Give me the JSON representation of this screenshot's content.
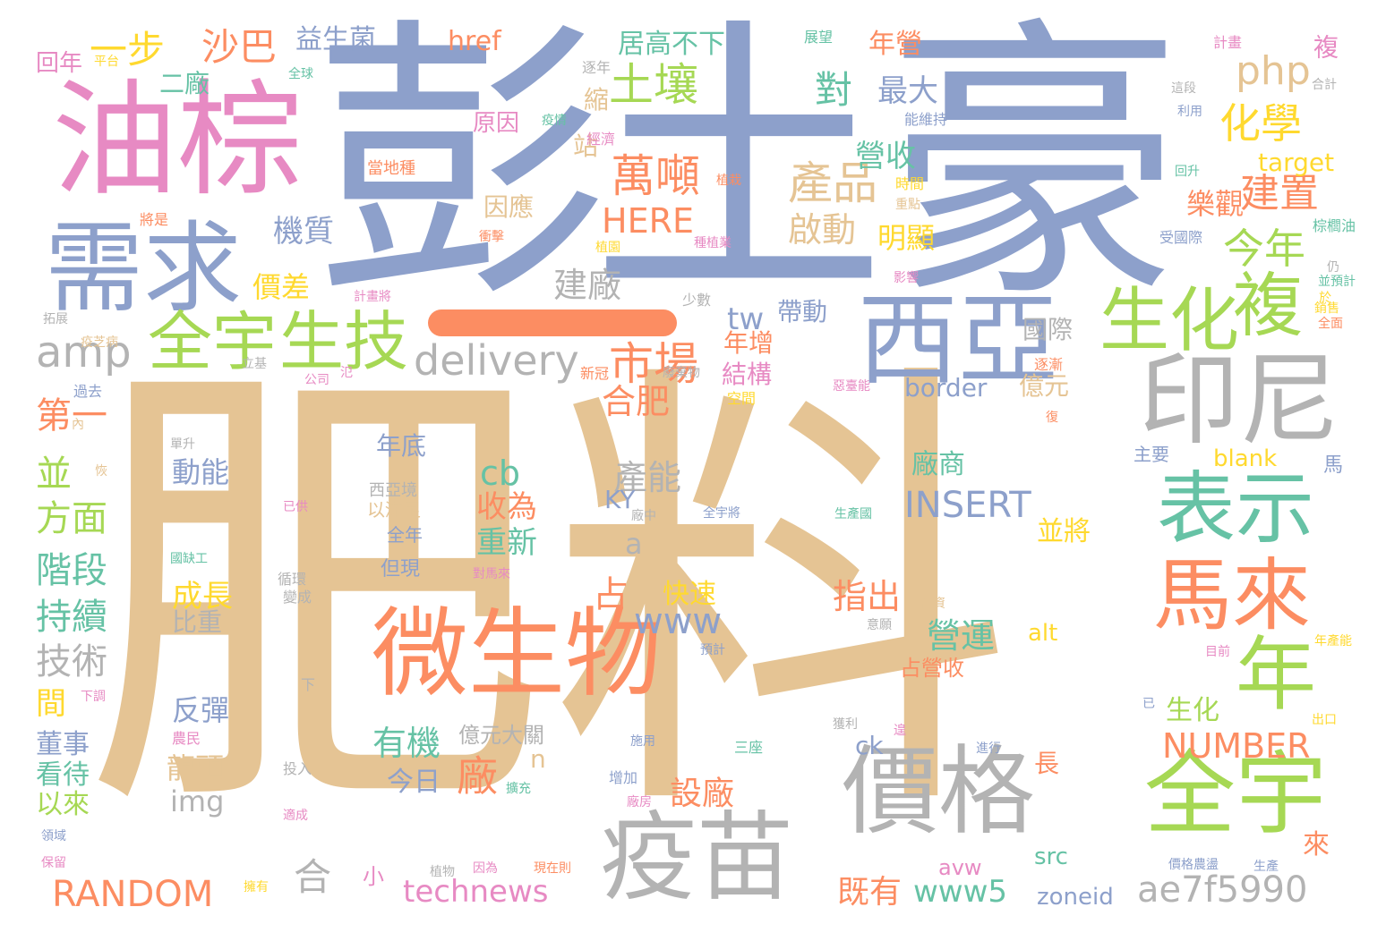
{
  "palette": {
    "blue": "#8da0cb",
    "tan": "#e5c494",
    "pink": "#e78ac3",
    "orange": "#fc8d62",
    "green": "#66c2a5",
    "lime": "#a6d854",
    "yellow": "#ffd92f",
    "gray": "#b3b3b3"
  },
  "dash_color": "#fc8d62",
  "words": [
    {
      "text": "肥料",
      "color": "tan"
    },
    {
      "text": "彭",
      "color": "blue"
    },
    {
      "text": "土豪",
      "color": "blue"
    },
    {
      "text": "油棕",
      "color": "pink"
    },
    {
      "text": "需求",
      "color": "blue"
    },
    {
      "text": "西亞",
      "color": "blue"
    },
    {
      "text": "印尼",
      "color": "gray"
    },
    {
      "text": "微生物",
      "color": "orange"
    },
    {
      "text": "疫苗",
      "color": "gray"
    },
    {
      "text": "價格",
      "color": "gray"
    },
    {
      "text": "全宇",
      "color": "lime"
    },
    {
      "text": "表示",
      "color": "green"
    },
    {
      "text": "馬來",
      "color": "orange"
    },
    {
      "text": "年",
      "color": "lime"
    },
    {
      "text": "生化",
      "color": "lime"
    },
    {
      "text": "複",
      "color": "lime"
    },
    {
      "text": "全宇",
      "color": "lime"
    },
    {
      "text": "生技",
      "color": "lime"
    },
    {
      "text": "amp",
      "color": "gray"
    },
    {
      "text": "delivery",
      "color": "gray"
    },
    {
      "text": "市場",
      "color": "orange"
    },
    {
      "text": "產品",
      "color": "tan"
    },
    {
      "text": "萬噸",
      "color": "orange"
    },
    {
      "text": "土壤",
      "color": "lime"
    },
    {
      "text": "化學",
      "color": "yellow"
    },
    {
      "text": "今年",
      "color": "lime"
    },
    {
      "text": "建置",
      "color": "orange"
    },
    {
      "text": "php",
      "color": "tan"
    },
    {
      "text": "沙巴",
      "color": "orange"
    },
    {
      "text": "一步",
      "color": "yellow"
    },
    {
      "text": "對",
      "color": "green"
    },
    {
      "text": "最大",
      "color": "blue"
    },
    {
      "text": "啟動",
      "color": "tan"
    },
    {
      "text": "機質",
      "color": "blue"
    },
    {
      "text": "價差",
      "color": "yellow"
    },
    {
      "text": "建廠",
      "color": "gray"
    },
    {
      "text": "HERE",
      "color": "orange"
    },
    {
      "text": "營收",
      "color": "green"
    },
    {
      "text": "明顯",
      "color": "yellow"
    },
    {
      "text": "樂觀",
      "color": "orange"
    },
    {
      "text": "target",
      "color": "yellow"
    },
    {
      "text": "居高不下",
      "color": "green"
    },
    {
      "text": "益生菌",
      "color": "blue"
    },
    {
      "text": "href",
      "color": "orange"
    },
    {
      "text": "年營",
      "color": "orange"
    },
    {
      "text": "回年",
      "color": "pink"
    },
    {
      "text": "二廠",
      "color": "green"
    },
    {
      "text": "因應",
      "color": "tan"
    },
    {
      "text": "站",
      "color": "tan"
    },
    {
      "text": "縮",
      "color": "tan"
    },
    {
      "text": "原因",
      "color": "pink"
    },
    {
      "text": "帶動",
      "color": "blue"
    },
    {
      "text": "tw",
      "color": "blue"
    },
    {
      "text": "年增",
      "color": "orange"
    },
    {
      "text": "結構",
      "color": "pink"
    },
    {
      "text": "國際",
      "color": "gray"
    },
    {
      "text": "border",
      "color": "blue"
    },
    {
      "text": "億元",
      "color": "tan"
    },
    {
      "text": "合肥",
      "color": "orange"
    },
    {
      "text": "產能",
      "color": "gray"
    },
    {
      "text": "cb",
      "color": "green"
    },
    {
      "text": "收為",
      "color": "orange"
    },
    {
      "text": "重新",
      "color": "green"
    },
    {
      "text": "廠商",
      "color": "green"
    },
    {
      "text": "INSERT",
      "color": "blue"
    },
    {
      "text": "並將",
      "color": "yellow"
    },
    {
      "text": "第一",
      "color": "orange"
    },
    {
      "text": "並",
      "color": "lime"
    },
    {
      "text": "方面",
      "color": "lime"
    },
    {
      "text": "階段",
      "color": "green"
    },
    {
      "text": "持續",
      "color": "green"
    },
    {
      "text": "技術",
      "color": "gray"
    },
    {
      "text": "間",
      "color": "yellow"
    },
    {
      "text": "董事",
      "color": "blue"
    },
    {
      "text": "看待",
      "color": "green"
    },
    {
      "text": "以來",
      "color": "lime"
    },
    {
      "text": "動能",
      "color": "blue"
    },
    {
      "text": "年底",
      "color": "blue"
    },
    {
      "text": "成長",
      "color": "yellow"
    },
    {
      "text": "比重",
      "color": "gray"
    },
    {
      "text": "反彈",
      "color": "blue"
    },
    {
      "text": "龍頭",
      "color": "tan"
    },
    {
      "text": "img",
      "color": "gray"
    },
    {
      "text": "KY",
      "color": "blue"
    },
    {
      "text": "a",
      "color": "gray"
    },
    {
      "text": "占",
      "color": "orange"
    },
    {
      "text": "www",
      "color": "blue"
    },
    {
      "text": "快速",
      "color": "yellow"
    },
    {
      "text": "指出",
      "color": "orange"
    },
    {
      "text": "營運",
      "color": "green"
    },
    {
      "text": "有機",
      "color": "green"
    },
    {
      "text": "廠",
      "color": "orange"
    },
    {
      "text": "n",
      "color": "tan"
    },
    {
      "text": "今日",
      "color": "blue"
    },
    {
      "text": "設廠",
      "color": "orange"
    },
    {
      "text": "生化",
      "color": "lime"
    },
    {
      "text": "NUMBER",
      "color": "orange"
    },
    {
      "text": "長",
      "color": "orange"
    },
    {
      "text": "alt",
      "color": "yellow"
    },
    {
      "text": "占營收",
      "color": "orange"
    },
    {
      "text": "ck",
      "color": "blue"
    },
    {
      "text": "億元大關",
      "color": "gray"
    },
    {
      "text": "blank",
      "color": "yellow"
    },
    {
      "text": "RANDOM",
      "color": "orange"
    },
    {
      "text": "合",
      "color": "gray"
    },
    {
      "text": "technews",
      "color": "pink"
    },
    {
      "text": "既有",
      "color": "orange"
    },
    {
      "text": "www5",
      "color": "green"
    },
    {
      "text": "zoneid",
      "color": "blue"
    },
    {
      "text": "ae7f5990",
      "color": "gray"
    },
    {
      "text": "avw",
      "color": "pink"
    },
    {
      "text": "src",
      "color": "green"
    },
    {
      "text": "來",
      "color": "orange"
    },
    {
      "text": "小",
      "color": "pink"
    },
    {
      "text": "但現",
      "color": "blue"
    },
    {
      "text": "以滿足",
      "color": "tan"
    },
    {
      "text": "全年",
      "color": "blue"
    },
    {
      "text": "西亞境",
      "color": "gray"
    },
    {
      "text": "主要",
      "color": "blue"
    },
    {
      "text": "馬",
      "color": "blue"
    },
    {
      "text": "複",
      "color": "pink"
    },
    {
      "text": "平台",
      "color": "yellow"
    },
    {
      "text": "全球",
      "color": "green"
    },
    {
      "text": "逐年",
      "color": "gray"
    },
    {
      "text": "疫情",
      "color": "green"
    },
    {
      "text": "經濟",
      "color": "pink"
    },
    {
      "text": "當地種",
      "color": "orange"
    },
    {
      "text": "植栽",
      "color": "orange"
    },
    {
      "text": "衝擊",
      "color": "orange"
    },
    {
      "text": "植園",
      "color": "yellow"
    },
    {
      "text": "種植業",
      "color": "pink"
    },
    {
      "text": "時間",
      "color": "yellow"
    },
    {
      "text": "重點",
      "color": "tan"
    },
    {
      "text": "影響",
      "color": "pink"
    },
    {
      "text": "能維持",
      "color": "blue"
    },
    {
      "text": "這段",
      "color": "gray"
    },
    {
      "text": "利用",
      "color": "blue"
    },
    {
      "text": "回升",
      "color": "green"
    },
    {
      "text": "受國際",
      "color": "blue"
    },
    {
      "text": "棕櫚油",
      "color": "green"
    },
    {
      "text": "計畫",
      "color": "pink"
    },
    {
      "text": "合計",
      "color": "gray"
    },
    {
      "text": "展望",
      "color": "green"
    },
    {
      "text": "將是",
      "color": "orange"
    },
    {
      "text": "拓展",
      "color": "gray"
    },
    {
      "text": "疫芝病",
      "color": "tan"
    },
    {
      "text": "立基",
      "color": "gray"
    },
    {
      "text": "公司",
      "color": "pink"
    },
    {
      "text": "氾",
      "color": "pink"
    },
    {
      "text": "過去",
      "color": "blue"
    },
    {
      "text": "內",
      "color": "tan"
    },
    {
      "text": "計畫將",
      "color": "pink"
    },
    {
      "text": "少數",
      "color": "gray"
    },
    {
      "text": "新冠",
      "color": "orange"
    },
    {
      "text": "廢棄物",
      "color": "gray"
    },
    {
      "text": "空間",
      "color": "yellow"
    },
    {
      "text": "惡臺能",
      "color": "pink"
    },
    {
      "text": "逐漸",
      "color": "orange"
    },
    {
      "text": "復",
      "color": "orange"
    },
    {
      "text": "於",
      "color": "yellow"
    },
    {
      "text": "仍",
      "color": "gray"
    },
    {
      "text": "並預計",
      "color": "green"
    },
    {
      "text": "全面",
      "color": "orange"
    },
    {
      "text": "銷售",
      "color": "yellow"
    },
    {
      "text": "單升",
      "color": "gray"
    },
    {
      "text": "恢",
      "color": "tan"
    },
    {
      "text": "已供",
      "color": "pink"
    },
    {
      "text": "國缺工",
      "color": "green"
    },
    {
      "text": "循環",
      "color": "gray"
    },
    {
      "text": "變成",
      "color": "gray"
    },
    {
      "text": "廠中",
      "color": "gray"
    },
    {
      "text": "全宇將",
      "color": "blue"
    },
    {
      "text": "生產國",
      "color": "green"
    },
    {
      "text": "對馬來",
      "color": "pink"
    },
    {
      "text": "合資",
      "color": "tan"
    },
    {
      "text": "意願",
      "color": "gray"
    },
    {
      "text": "預計",
      "color": "blue"
    },
    {
      "text": "目前",
      "color": "pink"
    },
    {
      "text": "年產能",
      "color": "yellow"
    },
    {
      "text": "下",
      "color": "gray"
    },
    {
      "text": "下調",
      "color": "pink"
    },
    {
      "text": "已",
      "color": "blue"
    },
    {
      "text": "出口",
      "color": "yellow"
    },
    {
      "text": "獲利",
      "color": "gray"
    },
    {
      "text": "施用",
      "color": "blue"
    },
    {
      "text": "遑",
      "color": "pink"
    },
    {
      "text": "三座",
      "color": "green"
    },
    {
      "text": "進行",
      "color": "blue"
    },
    {
      "text": "農民",
      "color": "pink"
    },
    {
      "text": "投入",
      "color": "gray"
    },
    {
      "text": "增加",
      "color": "blue"
    },
    {
      "text": "擴充",
      "color": "green"
    },
    {
      "text": "適成",
      "color": "pink"
    },
    {
      "text": "領域",
      "color": "blue"
    },
    {
      "text": "廠房",
      "color": "pink"
    },
    {
      "text": "保留",
      "color": "pink"
    },
    {
      "text": "植物",
      "color": "gray"
    },
    {
      "text": "因為",
      "color": "pink"
    },
    {
      "text": "現在則",
      "color": "orange"
    },
    {
      "text": "擁有",
      "color": "yellow"
    },
    {
      "text": "價格農盪",
      "color": "blue"
    },
    {
      "text": "生產",
      "color": "blue"
    }
  ]
}
